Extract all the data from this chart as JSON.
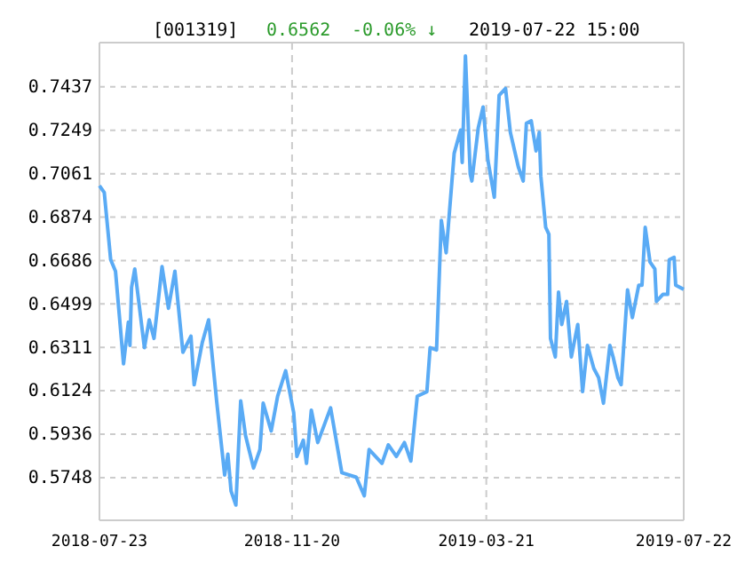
{
  "chart_data": {
    "type": "line",
    "title": "[001319]",
    "annotations": [
      "0.6562",
      "-0.06% ↓",
      "2019-07-22 15:00"
    ],
    "x": [
      "2018-07-23",
      "2018-07-26",
      "2018-07-30",
      "2018-08-02",
      "2018-08-07",
      "2018-08-10",
      "2018-08-11",
      "2018-08-12",
      "2018-08-14",
      "2018-08-20",
      "2018-08-23",
      "2018-08-26",
      "2018-08-31",
      "2018-09-04",
      "2018-09-08",
      "2018-09-13",
      "2018-09-18",
      "2018-09-20",
      "2018-09-25",
      "2018-09-29",
      "2018-10-04",
      "2018-10-09",
      "2018-10-11",
      "2018-10-13",
      "2018-10-16",
      "2018-10-19",
      "2018-10-22",
      "2018-10-27",
      "2018-10-31",
      "2018-11-02",
      "2018-11-07",
      "2018-11-11",
      "2018-11-16",
      "2018-11-21",
      "2018-11-23",
      "2018-11-27",
      "2018-11-29",
      "2018-12-02",
      "2018-12-06",
      "2018-12-14",
      "2018-12-21",
      "2018-12-30",
      "2019-01-04",
      "2019-01-07",
      "2019-01-15",
      "2019-01-19",
      "2019-01-24",
      "2019-01-29",
      "2019-02-02",
      "2019-02-06",
      "2019-02-12",
      "2019-02-14",
      "2019-02-18",
      "2019-02-21",
      "2019-02-24",
      "2019-03-01",
      "2019-03-05",
      "2019-03-06",
      "2019-03-08",
      "2019-03-11",
      "2019-03-12",
      "2019-03-16",
      "2019-03-19",
      "2019-03-22",
      "2019-03-26",
      "2019-03-29",
      "2019-04-02",
      "2019-04-05",
      "2019-04-10",
      "2019-04-13",
      "2019-04-15",
      "2019-04-18",
      "2019-04-21",
      "2019-04-23",
      "2019-04-24",
      "2019-04-27",
      "2019-04-29",
      "2019-04-30",
      "2019-05-03",
      "2019-05-05",
      "2019-05-07",
      "2019-05-10",
      "2019-05-13",
      "2019-05-17",
      "2019-05-20",
      "2019-05-23",
      "2019-05-27",
      "2019-05-30",
      "2019-06-02",
      "2019-06-06",
      "2019-06-08",
      "2019-06-11",
      "2019-06-13",
      "2019-06-17",
      "2019-06-20",
      "2019-06-24",
      "2019-06-26",
      "2019-06-28",
      "2019-07-01",
      "2019-07-04",
      "2019-07-05",
      "2019-07-09",
      "2019-07-12",
      "2019-07-13",
      "2019-07-16",
      "2019-07-17",
      "2019-07-22"
    ],
    "series": [
      {
        "color": "#5aabf5",
        "values": [
          0.701,
          0.698,
          0.669,
          0.664,
          0.624,
          0.642,
          0.632,
          0.657,
          0.665,
          0.631,
          0.643,
          0.635,
          0.666,
          0.648,
          0.664,
          0.629,
          0.636,
          0.615,
          0.633,
          0.643,
          0.608,
          0.576,
          0.585,
          0.569,
          0.563,
          0.608,
          0.593,
          0.579,
          0.587,
          0.607,
          0.595,
          0.61,
          0.621,
          0.603,
          0.584,
          0.591,
          0.581,
          0.604,
          0.59,
          0.605,
          0.577,
          0.575,
          0.567,
          0.587,
          0.581,
          0.589,
          0.584,
          0.59,
          0.582,
          0.61,
          0.612,
          0.631,
          0.63,
          0.686,
          0.672,
          0.715,
          0.725,
          0.711,
          0.757,
          0.706,
          0.703,
          0.726,
          0.735,
          0.712,
          0.696,
          0.74,
          0.743,
          0.724,
          0.709,
          0.703,
          0.728,
          0.729,
          0.716,
          0.724,
          0.705,
          0.683,
          0.68,
          0.635,
          0.627,
          0.655,
          0.641,
          0.651,
          0.627,
          0.641,
          0.612,
          0.632,
          0.622,
          0.618,
          0.607,
          0.632,
          0.627,
          0.618,
          0.615,
          0.656,
          0.644,
          0.658,
          0.658,
          0.683,
          0.668,
          0.665,
          0.651,
          0.654,
          0.654,
          0.669,
          0.67,
          0.658,
          0.6562
        ]
      }
    ],
    "xlim": [
      "2018-07-23",
      "2019-07-22"
    ],
    "xticks": [
      {
        "value": "2018-07-23",
        "label": "2018-07-23"
      },
      {
        "value": "2018-11-20",
        "label": "2018-11-20"
      },
      {
        "value": "2019-03-21",
        "label": "2019-03-21"
      },
      {
        "value": "2019-07-22",
        "label": "2019-07-22"
      }
    ],
    "ylim": [
      0.5564,
      0.7628
    ],
    "yticks": [
      0.5748,
      0.5936,
      0.6124,
      0.6311,
      0.6499,
      0.6686,
      0.6874,
      0.7061,
      0.7249,
      0.7437
    ],
    "grid": true
  }
}
